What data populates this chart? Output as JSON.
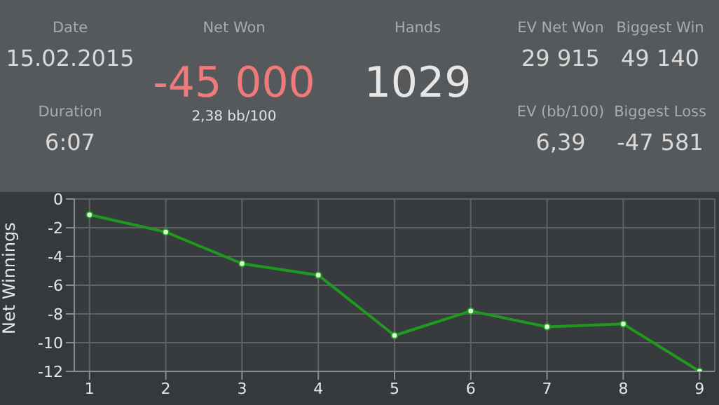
{
  "chart_data": [
    {
      "type": "other",
      "categories": [
        "15.02.2015",
        "-45 000",
        "1029",
        "29 915",
        "49 140",
        "6:07",
        "6,39",
        "-47 581"
      ],
      "annotations": [
        "Date",
        "Net Won",
        "Hands",
        "EV Net Won",
        "Biggest Win",
        "Duration",
        "EV (bb/100)",
        "Biggest Loss",
        "2,38 bb/100"
      ]
    },
    {
      "type": "line",
      "ylabel": "Net Winnings",
      "x": [
        1,
        2,
        3,
        4,
        5,
        6,
        7,
        8,
        9
      ],
      "series": [
        {
          "color": "#1f9a1f",
          "values": [
            -1.1,
            -2.3,
            -4.5,
            -5.3,
            -9.5,
            -7.8,
            -8.9,
            -8.7,
            -12
          ]
        }
      ],
      "xlim": [
        0.8,
        9.2
      ],
      "xticks": [
        1,
        2,
        3,
        4,
        5,
        6,
        7,
        8,
        9
      ],
      "ylim": [
        -12,
        0
      ],
      "yticks": [
        -12,
        -10,
        -8,
        -6,
        -4,
        -2,
        0
      ],
      "grid": true,
      "marker": "circle",
      "line_style": "solid"
    }
  ]
}
